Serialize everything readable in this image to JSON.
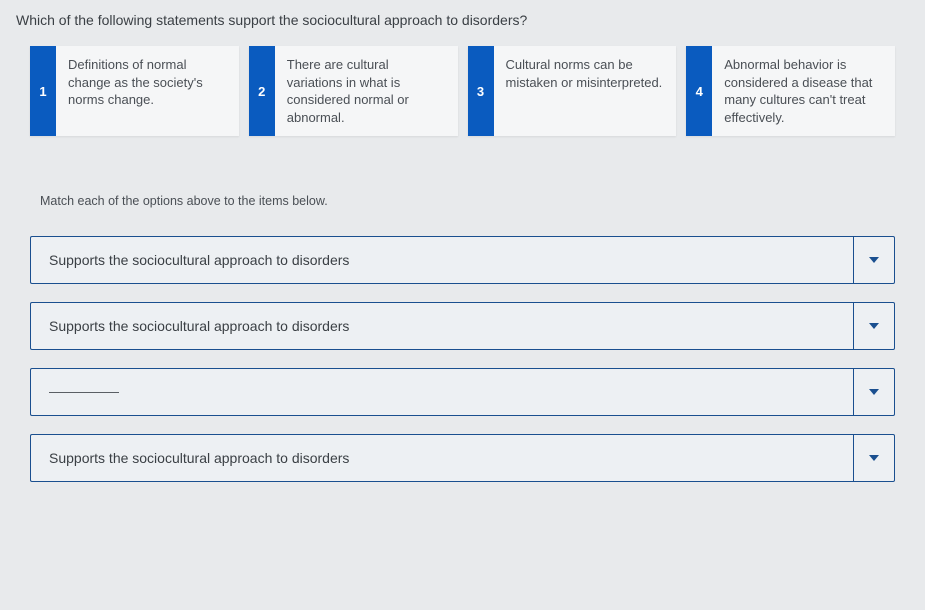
{
  "question": "Which of the following statements support the sociocultural approach to disorders?",
  "option_colors": {
    "1": "#0a5bbf",
    "2": "#0a5bbf",
    "3": "#0a5bbf",
    "4": "#0a5bbf"
  },
  "options": [
    {
      "num": "1",
      "text": "Definitions of normal change as the society's norms change."
    },
    {
      "num": "2",
      "text": "There are cultural variations in what is considered normal or abnormal."
    },
    {
      "num": "3",
      "text": "Cultural norms can be mistaken or misinterpreted."
    },
    {
      "num": "4",
      "text": "Abnormal behavior is considered a disease that many cultures can't treat effectively."
    }
  ],
  "instruction": "Match each of the options above to the items below.",
  "answers": [
    {
      "text": "Supports the sociocultural approach to disorders",
      "blank": false
    },
    {
      "text": "Supports the sociocultural approach to disorders",
      "blank": false
    },
    {
      "text": "",
      "blank": true
    },
    {
      "text": "Supports the sociocultural approach to disorders",
      "blank": false
    }
  ],
  "styling": {
    "page_bg": "#e8eaec",
    "card_bg": "#f5f6f7",
    "answer_bg": "#edf0f3",
    "answer_border": "#1a4f8f",
    "text_color": "#3a3f44",
    "font_family": "Arial",
    "title_fontsize": 14,
    "option_fontsize": 13,
    "answer_fontsize": 14
  }
}
